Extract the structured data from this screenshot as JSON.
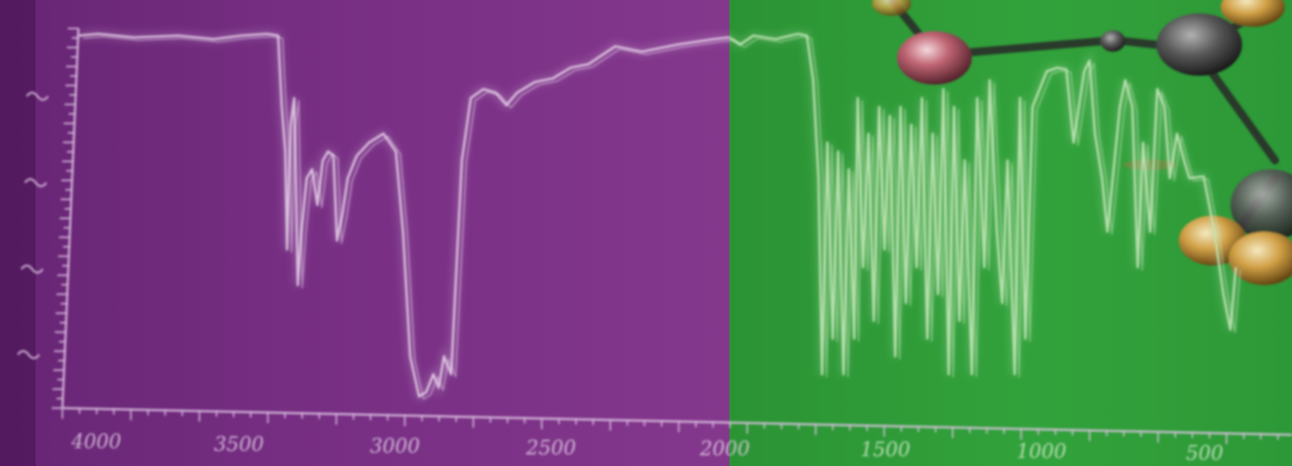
{
  "scene": {
    "description_colors": {
      "left_panel": "#7a2f86",
      "right_panel": "#2fa33a",
      "trace_left": "#e6c8ea",
      "trace_right": "#bfe8b4",
      "molecule_red": "#c96a78",
      "molecule_gray": "#5b5b5b",
      "molecule_gold": "#e0b65a"
    }
  },
  "spectrum": {
    "x_tick_labels": [
      "4000",
      "3500",
      "3000",
      "2500",
      "2000",
      "1500",
      "1000",
      "500"
    ]
  }
}
